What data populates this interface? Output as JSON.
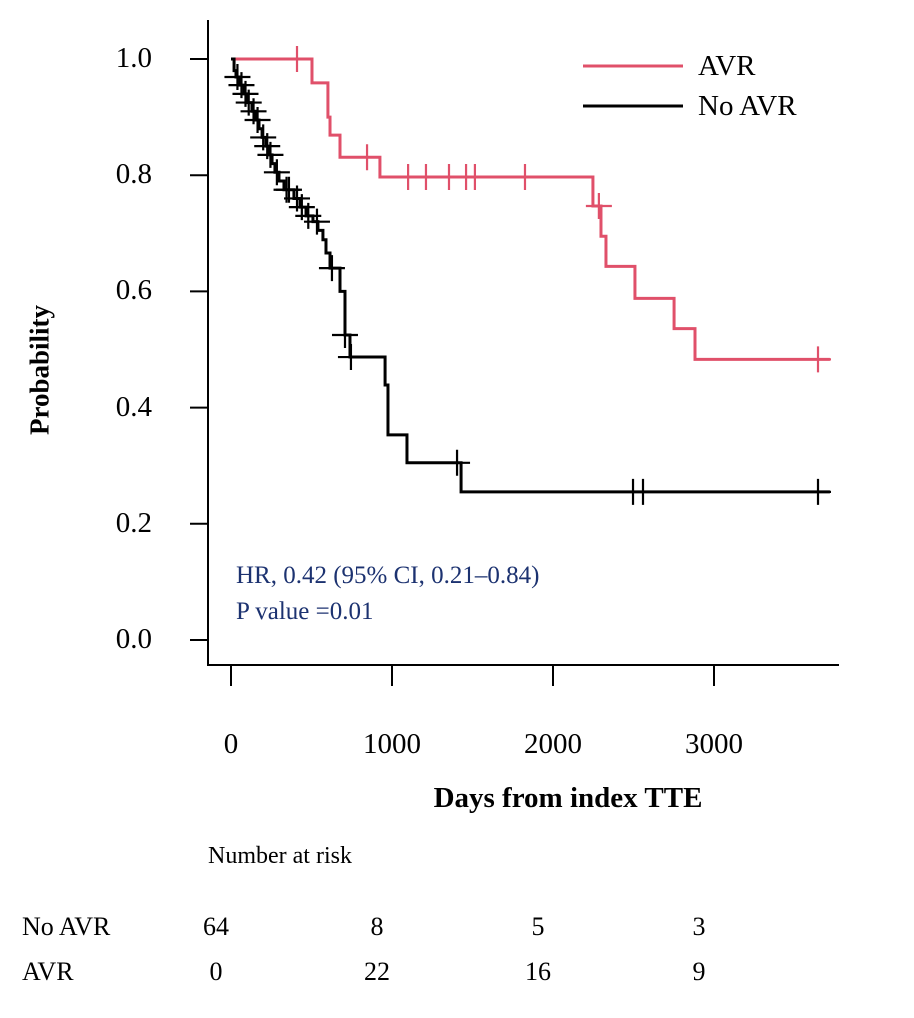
{
  "chart_data": {
    "type": "line",
    "subtype": "kaplan-meier step",
    "xlabel": "Days from index TTE",
    "ylabel": "Probability",
    "xlim": [
      0,
      3800
    ],
    "ylim": [
      0,
      1.0
    ],
    "xticks": [
      "0",
      "1000",
      "2000",
      "3000"
    ],
    "xtick_values": [
      0,
      1000,
      2000,
      3000
    ],
    "yticks": [
      "0.0",
      "0.2",
      "0.4",
      "0.6",
      "0.8",
      "1.0"
    ],
    "ytick_values": [
      0,
      0.2,
      0.4,
      0.6,
      0.8,
      1.0
    ],
    "grid": false,
    "legend_position": "top-right",
    "series": [
      {
        "name": "AVR",
        "color": "#e0506a",
        "steps": [
          [
            0,
            1.0
          ],
          [
            503,
            0.959
          ],
          [
            602,
            0.9
          ],
          [
            615,
            0.869
          ],
          [
            677,
            0.831
          ],
          [
            925,
            0.797
          ],
          [
            2248,
            0.747
          ],
          [
            2298,
            0.695
          ],
          [
            2329,
            0.643
          ],
          [
            2509,
            0.588
          ],
          [
            2752,
            0.536
          ],
          [
            2882,
            0.483
          ]
        ],
        "censored": [
          410,
          845,
          1100,
          1211,
          1354,
          1460,
          1515,
          1826,
          2285,
          3646
        ],
        "end": 3720
      },
      {
        "name": "No AVR",
        "color": "#000000",
        "steps": [
          [
            0,
            1.0
          ],
          [
            19,
            0.98
          ],
          [
            31,
            0.969
          ],
          [
            56,
            0.955
          ],
          [
            81,
            0.94
          ],
          [
            99,
            0.925
          ],
          [
            130,
            0.91
          ],
          [
            155,
            0.895
          ],
          [
            174,
            0.88
          ],
          [
            193,
            0.865
          ],
          [
            217,
            0.85
          ],
          [
            236,
            0.835
          ],
          [
            255,
            0.82
          ],
          [
            273,
            0.805
          ],
          [
            298,
            0.79
          ],
          [
            329,
            0.775
          ],
          [
            391,
            0.76
          ],
          [
            429,
            0.745
          ],
          [
            466,
            0.73
          ],
          [
            509,
            0.72
          ],
          [
            540,
            0.705
          ],
          [
            571,
            0.689
          ],
          [
            590,
            0.666
          ],
          [
            615,
            0.64
          ],
          [
            677,
            0.6
          ],
          [
            708,
            0.525
          ],
          [
            739,
            0.487
          ],
          [
            957,
            0.439
          ],
          [
            975,
            0.353
          ],
          [
            1093,
            0.305
          ],
          [
            1429,
            0.255
          ]
        ],
        "censored": [
          40,
          65,
          90,
          110,
          140,
          165,
          200,
          225,
          245,
          285,
          345,
          360,
          410,
          440,
          480,
          534,
          627,
          708,
          745,
          1404,
          2497,
          2559,
          3646
        ],
        "end": 3720
      }
    ],
    "annotations": {
      "hr": "HR, 0.42 (95% CI, 0.21–0.84)",
      "p": "P value =0.01",
      "color": "#1c3270"
    },
    "risk_table": {
      "title": "Number at risk",
      "rows": [
        {
          "label": "No AVR",
          "values": [
            "64",
            "8",
            "5",
            "3"
          ]
        },
        {
          "label": "AVR",
          "values": [
            "0",
            "22",
            "16",
            "9"
          ]
        }
      ]
    }
  }
}
